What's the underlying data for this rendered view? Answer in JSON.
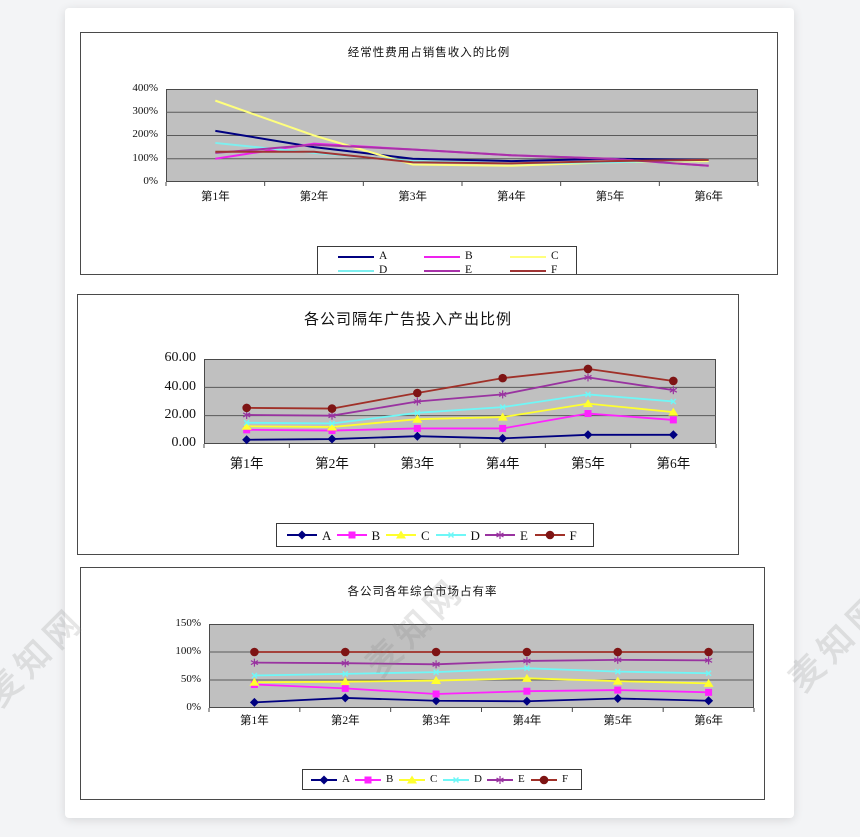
{
  "watermark": {
    "text": "麦知网"
  },
  "colors": {
    "plot_bg": "#C0C0C0",
    "grid": "#5a5a5a",
    "plot_border": "#4a4a4a"
  },
  "chart_data": [
    {
      "type": "line",
      "title": "经常性费用占销售收入的比例",
      "xlabel": "",
      "ylabel": "",
      "categories": [
        "第1年",
        "第2年",
        "第3年",
        "第4年",
        "第5年",
        "第6年"
      ],
      "ylim": [
        0,
        400
      ],
      "grid": true,
      "legend_position": "bottom",
      "y_ticks": [
        {
          "label": "0%",
          "value": 0
        },
        {
          "label": "100%",
          "value": 100
        },
        {
          "label": "200%",
          "value": 200
        },
        {
          "label": "300%",
          "value": 300
        },
        {
          "label": "400%",
          "value": 400
        }
      ],
      "series": [
        {
          "name": "A",
          "color": "#000080",
          "marker": "none",
          "values": [
            220,
            150,
            100,
            90,
            100,
            95
          ]
        },
        {
          "name": "B",
          "color": "#EE22EE",
          "marker": "none",
          "values": [
            100,
            165,
            140,
            115,
            100,
            70
          ]
        },
        {
          "name": "C",
          "color": "#FFFF7D",
          "marker": "none",
          "values": [
            350,
            200,
            75,
            70,
            85,
            90
          ]
        },
        {
          "name": "D",
          "color": "#7DEFEF",
          "marker": "none",
          "values": [
            168,
            125,
            90,
            80,
            85,
            95
          ]
        },
        {
          "name": "E",
          "color": "#A832A8",
          "marker": "none",
          "values": [
            125,
            160,
            140,
            115,
            100,
            70
          ]
        },
        {
          "name": "F",
          "color": "#A03434",
          "marker": "none",
          "values": [
            130,
            130,
            85,
            80,
            90,
            95
          ]
        }
      ]
    },
    {
      "type": "line",
      "title": "各公司隔年广告投入产出比例",
      "xlabel": "",
      "ylabel": "",
      "categories": [
        "第1年",
        "第2年",
        "第3年",
        "第4年",
        "第5年",
        "第6年"
      ],
      "ylim": [
        0,
        60
      ],
      "grid": true,
      "legend_position": "bottom",
      "y_ticks": [
        {
          "label": "0.00",
          "value": 0
        },
        {
          "label": "20.00",
          "value": 20
        },
        {
          "label": "40.00",
          "value": 40
        },
        {
          "label": "60.00",
          "value": 60
        }
      ],
      "series": [
        {
          "name": "A",
          "color": "#000080",
          "marker": "diamond",
          "values": [
            3,
            3.5,
            5.5,
            4,
            6.5,
            6.5
          ]
        },
        {
          "name": "B",
          "color": "#FF22FF",
          "marker": "square",
          "values": [
            10,
            9.5,
            11,
            11,
            21.5,
            17
          ]
        },
        {
          "name": "C",
          "color": "#FFFF2E",
          "marker": "triangle",
          "values": [
            12.5,
            12,
            17.5,
            19,
            28.5,
            22.5
          ]
        },
        {
          "name": "D",
          "color": "#6FF7F7",
          "marker": "x",
          "values": [
            15,
            14.5,
            22,
            26,
            35,
            30
          ]
        },
        {
          "name": "E",
          "color": "#9933A0",
          "marker": "asterisk",
          "values": [
            20.5,
            20,
            30,
            35,
            47,
            38
          ]
        },
        {
          "name": "F",
          "color": "#A03028",
          "marker": "circle",
          "marker_color": "#7E1414",
          "values": [
            25.5,
            25,
            36,
            46.5,
            53,
            44.5
          ]
        }
      ]
    },
    {
      "type": "line",
      "title": "各公司各年综合市场占有率",
      "xlabel": "",
      "ylabel": "",
      "categories": [
        "第1年",
        "第2年",
        "第3年",
        "第4年",
        "第5年",
        "第6年"
      ],
      "ylim": [
        0,
        150
      ],
      "grid": true,
      "legend_position": "bottom",
      "y_ticks": [
        {
          "label": "0%",
          "value": 0
        },
        {
          "label": "50%",
          "value": 50
        },
        {
          "label": "100%",
          "value": 100
        },
        {
          "label": "150%",
          "value": 150
        }
      ],
      "series": [
        {
          "name": "A",
          "color": "#000080",
          "marker": "diamond",
          "values": [
            10,
            18,
            13,
            12,
            17,
            13
          ]
        },
        {
          "name": "B",
          "color": "#FF22FF",
          "marker": "square",
          "values": [
            42,
            35,
            25,
            30,
            32,
            28
          ]
        },
        {
          "name": "C",
          "color": "#FFFF2E",
          "marker": "triangle",
          "values": [
            46,
            47,
            49,
            53,
            48,
            44
          ]
        },
        {
          "name": "D",
          "color": "#6FF7F7",
          "marker": "x",
          "values": [
            58,
            61,
            64,
            71,
            65,
            62
          ]
        },
        {
          "name": "E",
          "color": "#9933A0",
          "marker": "asterisk",
          "values": [
            81,
            80,
            78,
            84,
            86,
            85
          ]
        },
        {
          "name": "F",
          "color": "#A03028",
          "marker": "circle",
          "marker_color": "#7E1414",
          "values": [
            100,
            100,
            100,
            100,
            100,
            100
          ]
        }
      ]
    }
  ]
}
